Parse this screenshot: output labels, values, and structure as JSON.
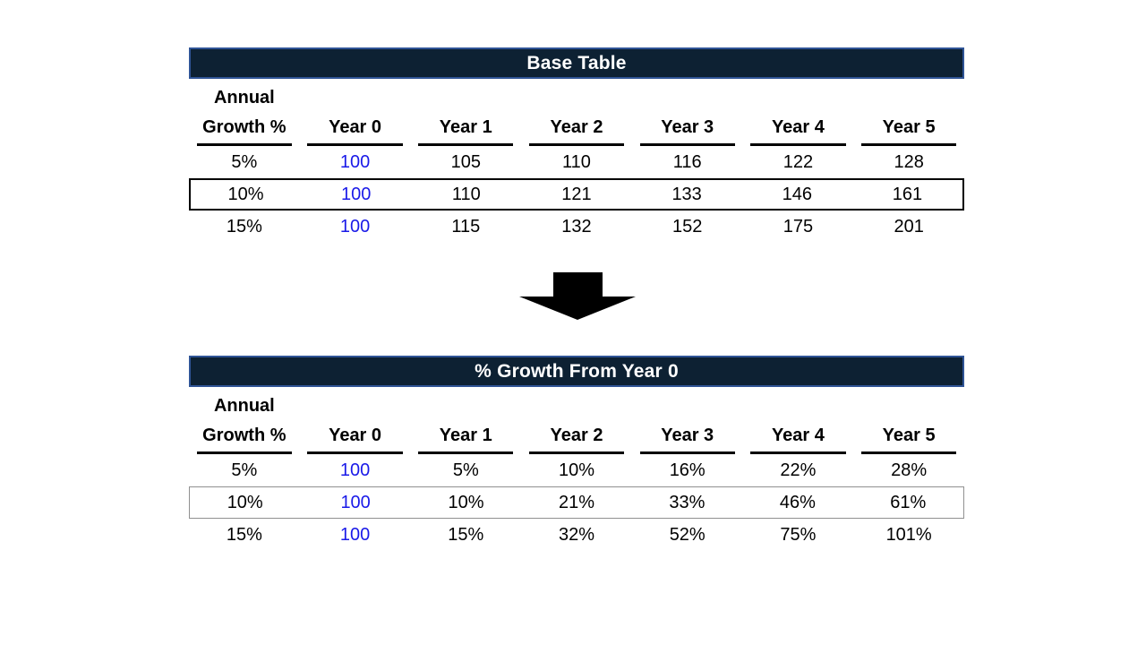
{
  "colors": {
    "title_bar_bg": "#0d2133",
    "title_bar_border": "#2f5496",
    "title_text": "#ffffff",
    "body_text": "#000000",
    "year0_text": "#1a1ae8",
    "base_highlight_border": "#000000",
    "growth_highlight_border": "#909090",
    "arrow": "#000000"
  },
  "arrow_icon": "down-arrow",
  "chart_data": [
    {
      "type": "table",
      "title": "Base Table",
      "row_header": [
        "Annual",
        "Growth %"
      ],
      "columns": [
        "Year 0",
        "Year 1",
        "Year 2",
        "Year 3",
        "Year 4",
        "Year 5"
      ],
      "rows": [
        {
          "label": "5%",
          "values": [
            "100",
            "105",
            "110",
            "116",
            "122",
            "128"
          ],
          "highlighted": false
        },
        {
          "label": "10%",
          "values": [
            "100",
            "110",
            "121",
            "133",
            "146",
            "161"
          ],
          "highlighted": true
        },
        {
          "label": "15%",
          "values": [
            "100",
            "115",
            "132",
            "152",
            "175",
            "201"
          ],
          "highlighted": false
        }
      ],
      "layout_hints": {
        "year0_column_color": "blue",
        "highlight_style": "black box around 10% row",
        "header_underline": "black"
      }
    },
    {
      "type": "table",
      "title": "% Growth From Year 0",
      "row_header": [
        "Annual",
        "Growth %"
      ],
      "columns": [
        "Year 0",
        "Year 1",
        "Year 2",
        "Year 3",
        "Year 4",
        "Year 5"
      ],
      "rows": [
        {
          "label": "5%",
          "values": [
            "100",
            "5%",
            "10%",
            "16%",
            "22%",
            "28%"
          ],
          "highlighted": false
        },
        {
          "label": "10%",
          "values": [
            "100",
            "10%",
            "21%",
            "33%",
            "46%",
            "61%"
          ],
          "highlighted": true
        },
        {
          "label": "15%",
          "values": [
            "100",
            "15%",
            "32%",
            "52%",
            "75%",
            "101%"
          ],
          "highlighted": false
        }
      ],
      "layout_hints": {
        "year0_column_color": "blue",
        "highlight_style": "thin gray box around 10% row",
        "header_underline": "black"
      }
    }
  ]
}
